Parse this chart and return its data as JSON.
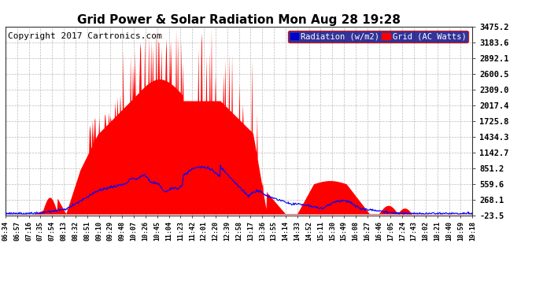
{
  "title": "Grid Power & Solar Radiation Mon Aug 28 19:28",
  "copyright": "Copyright 2017 Cartronics.com",
  "background_color": "#ffffff",
  "plot_bg_color": "#ffffff",
  "grid_color": "#aaaaaa",
  "yticks": [
    3475.2,
    3183.6,
    2892.1,
    2600.5,
    2309.0,
    2017.4,
    1725.8,
    1434.3,
    1142.7,
    851.2,
    559.6,
    268.1,
    -23.5
  ],
  "ytick_labels": [
    "3475.2",
    "3183.6",
    "2892.1",
    "2600.5",
    "2309.0",
    "2017.4",
    "1725.8",
    "1434.3",
    "1142.7",
    "851.2",
    "559.6",
    "268.1",
    "-23.5"
  ],
  "ymin": -23.5,
  "ymax": 3475.2,
  "xtick_labels": [
    "06:34",
    "06:57",
    "07:16",
    "07:35",
    "07:54",
    "08:13",
    "08:32",
    "08:51",
    "09:10",
    "09:29",
    "09:48",
    "10:07",
    "10:26",
    "10:45",
    "11:04",
    "11:23",
    "11:42",
    "12:01",
    "12:20",
    "12:39",
    "12:58",
    "13:17",
    "13:36",
    "13:55",
    "14:14",
    "14:33",
    "14:52",
    "15:11",
    "15:30",
    "15:49",
    "16:08",
    "16:27",
    "16:46",
    "17:05",
    "17:24",
    "17:43",
    "18:02",
    "18:21",
    "18:40",
    "18:59",
    "19:18"
  ],
  "legend_radiation_label": "Radiation (w/m2)",
  "legend_grid_label": "Grid (AC Watts)",
  "radiation_color": "#0000ff",
  "fill_color": "#ff0000",
  "title_fontsize": 11,
  "copyright_fontsize": 8
}
